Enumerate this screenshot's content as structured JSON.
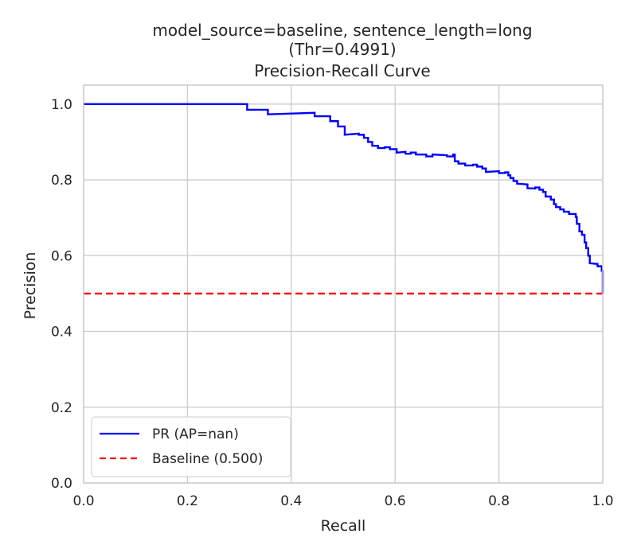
{
  "chart_data": {
    "type": "line",
    "title_lines": [
      "model_source=baseline, sentence_length=long",
      "(Thr=0.4991)",
      "Precision-Recall Curve"
    ],
    "xlabel": "Recall",
    "ylabel": "Precision",
    "xlim": [
      0.0,
      1.0
    ],
    "ylim": [
      0.0,
      1.05
    ],
    "xticks": [
      0.0,
      0.2,
      0.4,
      0.6,
      0.8,
      1.0
    ],
    "xtick_labels": [
      "0.0",
      "0.2",
      "0.4",
      "0.6",
      "0.8",
      "1.0"
    ],
    "yticks": [
      0.0,
      0.2,
      0.4,
      0.6,
      0.8,
      1.0
    ],
    "ytick_labels": [
      "0.0",
      "0.2",
      "0.4",
      "0.6",
      "0.8",
      "1.0"
    ],
    "grid": true,
    "legend_position": "lower-left",
    "series": [
      {
        "name": "PR (AP=nan)",
        "color": "#0000ff",
        "style": "solid",
        "step": true,
        "points": [
          [
            0.0,
            1.0
          ],
          [
            0.315,
            1.0
          ],
          [
            0.315,
            0.985
          ],
          [
            0.355,
            0.985
          ],
          [
            0.355,
            0.973
          ],
          [
            0.445,
            0.977
          ],
          [
            0.445,
            0.968
          ],
          [
            0.475,
            0.968
          ],
          [
            0.475,
            0.955
          ],
          [
            0.49,
            0.955
          ],
          [
            0.49,
            0.941
          ],
          [
            0.503,
            0.941
          ],
          [
            0.503,
            0.919
          ],
          [
            0.53,
            0.922
          ],
          [
            0.53,
            0.919
          ],
          [
            0.54,
            0.919
          ],
          [
            0.54,
            0.911
          ],
          [
            0.548,
            0.911
          ],
          [
            0.548,
            0.9
          ],
          [
            0.556,
            0.9
          ],
          [
            0.556,
            0.89
          ],
          [
            0.567,
            0.89
          ],
          [
            0.567,
            0.884
          ],
          [
            0.58,
            0.884
          ],
          [
            0.58,
            0.886
          ],
          [
            0.59,
            0.886
          ],
          [
            0.59,
            0.881
          ],
          [
            0.603,
            0.881
          ],
          [
            0.603,
            0.872
          ],
          [
            0.62,
            0.874
          ],
          [
            0.62,
            0.869
          ],
          [
            0.63,
            0.869
          ],
          [
            0.63,
            0.872
          ],
          [
            0.64,
            0.872
          ],
          [
            0.64,
            0.867
          ],
          [
            0.66,
            0.867
          ],
          [
            0.66,
            0.862
          ],
          [
            0.672,
            0.862
          ],
          [
            0.672,
            0.867
          ],
          [
            0.7,
            0.865
          ],
          [
            0.7,
            0.862
          ],
          [
            0.712,
            0.862
          ],
          [
            0.712,
            0.867
          ],
          [
            0.715,
            0.867
          ],
          [
            0.715,
            0.849
          ],
          [
            0.722,
            0.849
          ],
          [
            0.722,
            0.843
          ],
          [
            0.735,
            0.843
          ],
          [
            0.735,
            0.838
          ],
          [
            0.75,
            0.838
          ],
          [
            0.75,
            0.84
          ],
          [
            0.758,
            0.84
          ],
          [
            0.758,
            0.835
          ],
          [
            0.768,
            0.835
          ],
          [
            0.768,
            0.83
          ],
          [
            0.775,
            0.83
          ],
          [
            0.775,
            0.821
          ],
          [
            0.8,
            0.823
          ],
          [
            0.8,
            0.818
          ],
          [
            0.812,
            0.818
          ],
          [
            0.812,
            0.82
          ],
          [
            0.818,
            0.82
          ],
          [
            0.818,
            0.812
          ],
          [
            0.822,
            0.812
          ],
          [
            0.822,
            0.805
          ],
          [
            0.828,
            0.805
          ],
          [
            0.828,
            0.797
          ],
          [
            0.835,
            0.797
          ],
          [
            0.835,
            0.79
          ],
          [
            0.855,
            0.788
          ],
          [
            0.855,
            0.778
          ],
          [
            0.87,
            0.777
          ],
          [
            0.87,
            0.78
          ],
          [
            0.878,
            0.78
          ],
          [
            0.878,
            0.774
          ],
          [
            0.885,
            0.774
          ],
          [
            0.885,
            0.768
          ],
          [
            0.89,
            0.768
          ],
          [
            0.89,
            0.756
          ],
          [
            0.9,
            0.756
          ],
          [
            0.9,
            0.748
          ],
          [
            0.906,
            0.748
          ],
          [
            0.906,
            0.736
          ],
          [
            0.91,
            0.736
          ],
          [
            0.91,
            0.728
          ],
          [
            0.918,
            0.728
          ],
          [
            0.918,
            0.722
          ],
          [
            0.925,
            0.722
          ],
          [
            0.925,
            0.716
          ],
          [
            0.935,
            0.716
          ],
          [
            0.935,
            0.71
          ],
          [
            0.948,
            0.71
          ],
          [
            0.948,
            0.702
          ],
          [
            0.95,
            0.702
          ],
          [
            0.95,
            0.684
          ],
          [
            0.955,
            0.684
          ],
          [
            0.955,
            0.664
          ],
          [
            0.96,
            0.664
          ],
          [
            0.96,
            0.655
          ],
          [
            0.965,
            0.655
          ],
          [
            0.965,
            0.635
          ],
          [
            0.968,
            0.635
          ],
          [
            0.968,
            0.62
          ],
          [
            0.972,
            0.62
          ],
          [
            0.972,
            0.6
          ],
          [
            0.975,
            0.6
          ],
          [
            0.975,
            0.58
          ],
          [
            0.99,
            0.578
          ],
          [
            0.99,
            0.572
          ],
          [
            0.998,
            0.572
          ],
          [
            0.998,
            0.56
          ],
          [
            1.0,
            0.56
          ],
          [
            1.0,
            0.5
          ]
        ]
      },
      {
        "name": "Baseline (0.500)",
        "color": "#ff0000",
        "style": "dashed",
        "points": [
          [
            0.0,
            0.5
          ],
          [
            1.0,
            0.5
          ]
        ]
      }
    ]
  }
}
